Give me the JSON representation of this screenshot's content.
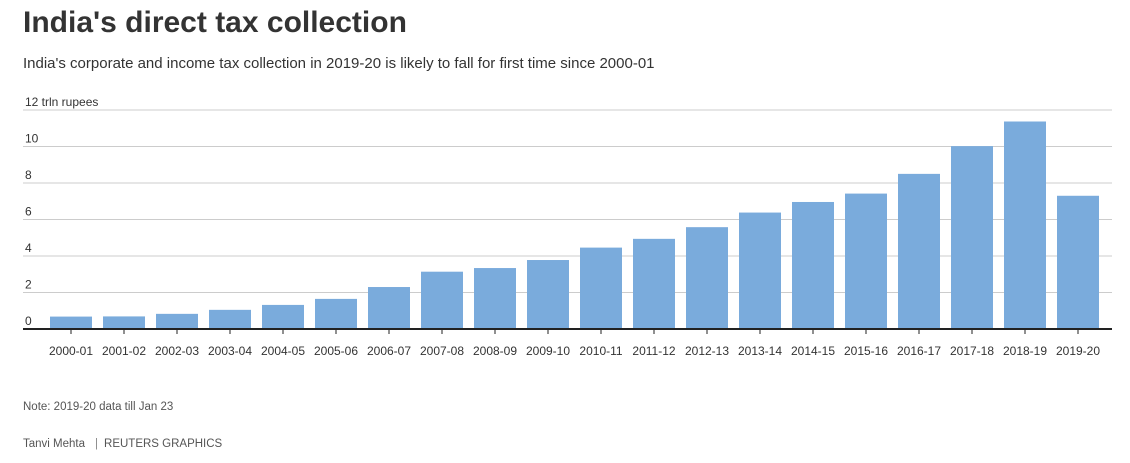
{
  "header": {
    "title": "India's direct tax collection",
    "subtitle": "India's corporate and income tax collection in 2019-20 is likely to fall for first time since 2000-01"
  },
  "footer": {
    "note": "Note: 2019-20 data till Jan 23",
    "author": "Tanvi Mehta",
    "separator": "|",
    "source": "REUTERS GRAPHICS"
  },
  "colors": {
    "bar": "#7aabdc",
    "grid": "#cccccc",
    "axis": "#222222",
    "text": "#333333"
  },
  "chart_data": {
    "type": "bar",
    "title": "India's direct tax collection",
    "subtitle": "India's corporate and income tax collection in 2019-20 is likely to fall for first time since 2000-01",
    "ylabel": "",
    "xlabel": "",
    "top_tick_label": "12 trln rupees",
    "ylim": [
      0,
      12
    ],
    "yticks": [
      0,
      2,
      4,
      6,
      8,
      10,
      12
    ],
    "grid": true,
    "categories": [
      "2000-01",
      "2001-02",
      "2002-03",
      "2003-04",
      "2004-05",
      "2005-06",
      "2006-07",
      "2007-08",
      "2008-09",
      "2009-10",
      "2010-11",
      "2011-12",
      "2012-13",
      "2013-14",
      "2014-15",
      "2015-16",
      "2016-17",
      "2017-18",
      "2018-19",
      "2019-20"
    ],
    "values": [
      0.68,
      0.69,
      0.83,
      1.05,
      1.32,
      1.65,
      2.3,
      3.14,
      3.34,
      3.78,
      4.46,
      4.94,
      5.58,
      6.38,
      6.96,
      7.42,
      8.5,
      10.02,
      11.37,
      7.3
    ]
  }
}
